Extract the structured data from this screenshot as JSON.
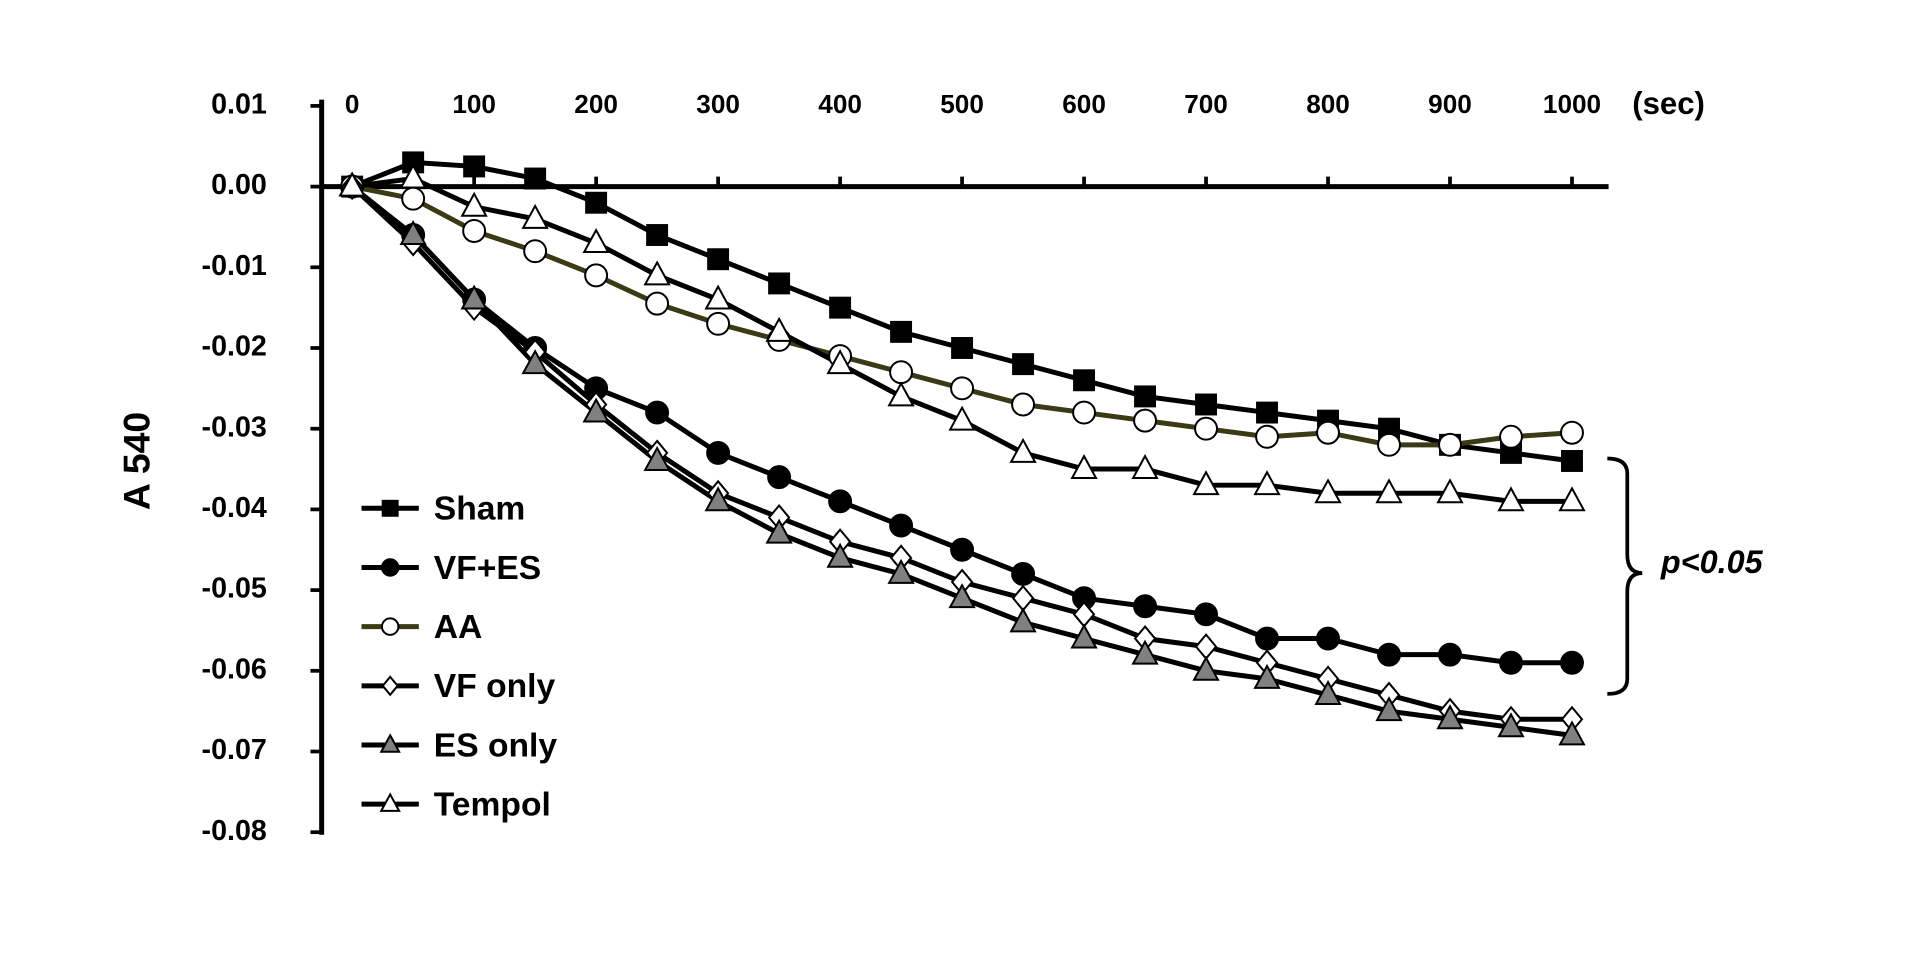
{
  "chart_data": {
    "type": "line",
    "y_label": "A 540",
    "x_label": "(sec)",
    "annotation": "p<0.05",
    "x": [
      0,
      50,
      100,
      150,
      200,
      250,
      300,
      350,
      400,
      450,
      500,
      550,
      600,
      650,
      700,
      750,
      800,
      850,
      900,
      950,
      1000
    ],
    "xlim": [
      -25,
      1030
    ],
    "xticks": [
      0,
      100,
      200,
      300,
      400,
      500,
      600,
      700,
      800,
      900,
      1000
    ],
    "ylim": [
      -0.08,
      0.01
    ],
    "yticks": [
      0.01,
      {
        "value": 0,
        "label": "0.00"
      },
      -0.01,
      -0.02,
      -0.03,
      -0.04,
      -0.05,
      -0.06,
      -0.07,
      -0.08
    ],
    "series": [
      {
        "name": "Sham",
        "color": "#000000",
        "marker": "square",
        "fill": "#000000",
        "values": [
          0,
          0.003,
          0.0025,
          0.001,
          -0.002,
          -0.006,
          -0.009,
          -0.012,
          -0.015,
          -0.018,
          -0.02,
          -0.022,
          -0.024,
          -0.026,
          -0.027,
          -0.028,
          -0.029,
          -0.03,
          -0.032,
          -0.033,
          -0.034
        ]
      },
      {
        "name": "VF+ES",
        "color": "#000000",
        "marker": "circle",
        "fill": "#000000",
        "values": [
          0,
          -0.006,
          -0.014,
          -0.02,
          -0.025,
          -0.028,
          -0.033,
          -0.036,
          -0.039,
          -0.042,
          -0.045,
          -0.048,
          -0.051,
          -0.052,
          -0.053,
          -0.056,
          -0.056,
          -0.058,
          -0.058,
          -0.059,
          -0.059
        ]
      },
      {
        "name": "AA",
        "color": "#3a3a14",
        "marker": "circle",
        "fill": "#ffffff",
        "values": [
          0,
          -0.0015,
          -0.0055,
          -0.008,
          -0.011,
          -0.0145,
          -0.017,
          -0.019,
          -0.021,
          -0.023,
          -0.025,
          -0.027,
          -0.028,
          -0.029,
          -0.03,
          -0.031,
          -0.0305,
          -0.032,
          -0.032,
          -0.031,
          -0.0305
        ]
      },
      {
        "name": "VF only",
        "color": "#000000",
        "marker": "diamond",
        "fill": "#ffffff",
        "values": [
          0,
          -0.007,
          -0.015,
          -0.0205,
          -0.027,
          -0.033,
          -0.038,
          -0.041,
          -0.044,
          -0.046,
          -0.049,
          -0.051,
          -0.053,
          -0.056,
          -0.057,
          -0.059,
          -0.061,
          -0.063,
          -0.065,
          -0.066,
          -0.066
        ]
      },
      {
        "name": "ES only",
        "color": "#000000",
        "marker": "triangle",
        "fill": "#808080",
        "values": [
          0,
          -0.006,
          -0.014,
          -0.022,
          -0.028,
          -0.034,
          -0.039,
          -0.043,
          -0.046,
          -0.048,
          -0.051,
          -0.054,
          -0.056,
          -0.058,
          -0.06,
          -0.061,
          -0.063,
          -0.065,
          -0.066,
          -0.067,
          -0.068
        ]
      },
      {
        "name": "Tempol",
        "color": "#000000",
        "marker": "triangle",
        "fill": "#ffffff",
        "values": [
          0,
          0.001,
          -0.0025,
          -0.004,
          -0.007,
          -0.011,
          -0.014,
          -0.018,
          -0.022,
          -0.026,
          -0.029,
          -0.033,
          -0.035,
          -0.035,
          -0.037,
          -0.037,
          -0.038,
          -0.038,
          -0.038,
          -0.039,
          -0.039
        ]
      }
    ]
  }
}
